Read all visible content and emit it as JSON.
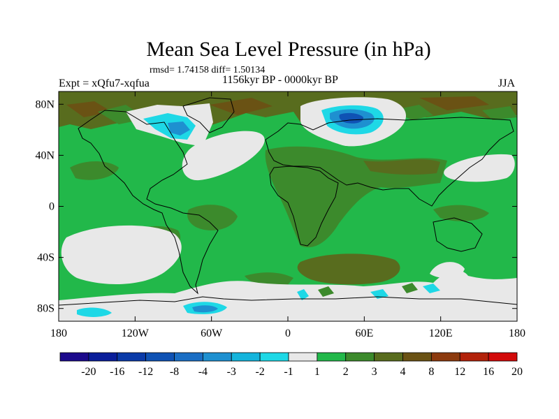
{
  "chart_data": {
    "type": "heatmap",
    "title": "Mean Sea Level Pressure (in hPa)",
    "stats": "rmsd= 1.74158 diff= 1.50134",
    "left_label": "Expt = xQfu7-xqfua",
    "center_label": "1156kyr BP - 0000kyr BP",
    "right_label": "JJA",
    "x_ticks": [
      "180",
      "120W",
      "60W",
      "0",
      "60E",
      "120E",
      "180"
    ],
    "y_ticks": [
      "80N",
      "40N",
      "0",
      "40S",
      "80S"
    ],
    "xlim": [
      -180,
      180
    ],
    "ylim": [
      -90,
      90
    ],
    "x_tick_values": [
      -180,
      -120,
      -60,
      0,
      60,
      120,
      180
    ],
    "y_tick_values": [
      80,
      40,
      0,
      -40,
      -80
    ],
    "colorbar": {
      "labels": [
        "-20",
        "-16",
        "-12",
        "-8",
        "-4",
        "-3",
        "-2",
        "-1",
        "1",
        "2",
        "3",
        "4",
        "8",
        "12",
        "16",
        "20"
      ],
      "colors": [
        "#1c0a8c",
        "#0a1e9a",
        "#0a3aa8",
        "#0f52b4",
        "#1a6ec4",
        "#1e90d0",
        "#14b4dc",
        "#1ed8e6",
        "#e8e8e8",
        "#22b84a",
        "#3c8a2c",
        "#586c1e",
        "#6a5214",
        "#8c3a0e",
        "#b2220a",
        "#d20a0a"
      ]
    },
    "regions": [
      {
        "name": "background",
        "value": 1.5,
        "color": "#22b84a",
        "lon": [
          -180,
          180
        ],
        "lat": [
          -90,
          90
        ]
      },
      {
        "name": "arctic-ridge",
        "value": 3.5,
        "color": "#586c1e",
        "lon": [
          -180,
          180
        ],
        "lat": [
          70,
          87
        ]
      },
      {
        "name": "north-atlantic-low",
        "value": 0,
        "color": "#e8e8e8",
        "lon": [
          -90,
          -25
        ],
        "lat": [
          30,
          60
        ]
      },
      {
        "name": "greenland-low",
        "value": -2,
        "color": "#14b4dc",
        "lon": [
          -100,
          -60
        ],
        "lat": [
          60,
          82
        ]
      },
      {
        "name": "barents-low",
        "value": -5,
        "color": "#1a6ec4",
        "lon": [
          10,
          90
        ],
        "lat": [
          65,
          85
        ]
      },
      {
        "name": "barents-core",
        "value": -8,
        "color": "#0f52b4",
        "lon": [
          35,
          60
        ],
        "lat": [
          72,
          82
        ]
      },
      {
        "name": "north-pacific-low",
        "value": 0,
        "color": "#e8e8e8",
        "lon": [
          130,
          175
        ],
        "lat": [
          30,
          50
        ]
      },
      {
        "name": "africa-asia-high",
        "value": 2.5,
        "color": "#3c8a2c",
        "lon": [
          -20,
          140
        ],
        "lat": [
          -35,
          50
        ]
      },
      {
        "name": "east-pacific-low",
        "value": 0,
        "color": "#e8e8e8",
        "lon": [
          -175,
          -90
        ],
        "lat": [
          -55,
          -15
        ]
      },
      {
        "name": "south-indian-high",
        "value": 3.5,
        "color": "#586c1e",
        "lon": [
          20,
          100
        ],
        "lat": [
          -60,
          -35
        ]
      },
      {
        "name": "southern-ocean-low",
        "value": 0,
        "color": "#e8e8e8",
        "lon": [
          -180,
          180
        ],
        "lat": [
          -90,
          -68
        ]
      },
      {
        "name": "ross-low",
        "value": -3,
        "color": "#1e90d0",
        "lon": [
          -90,
          -50
        ],
        "lat": [
          -88,
          -80
        ]
      }
    ]
  }
}
